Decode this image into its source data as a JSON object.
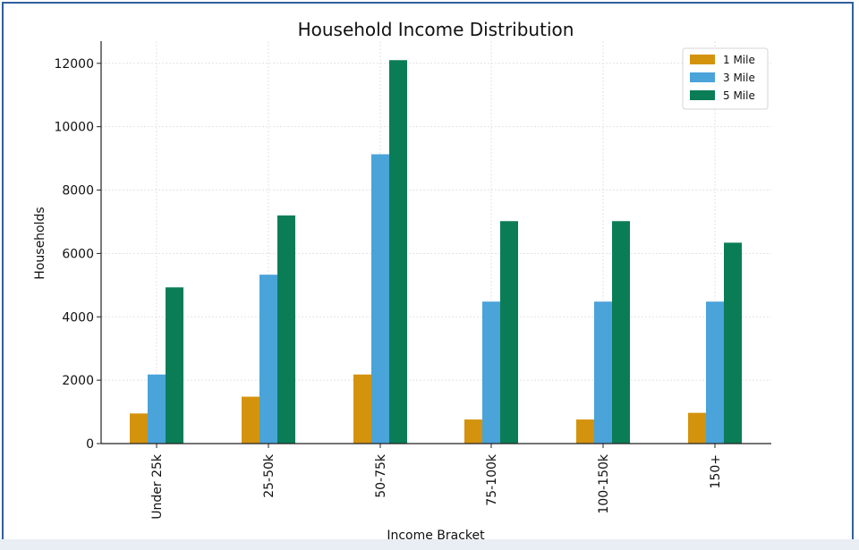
{
  "chart_data": {
    "type": "bar",
    "title": "Household Income Distribution",
    "xlabel": "Income Bracket",
    "ylabel": "Households",
    "categories": [
      "Under 25k",
      "25-50k",
      "50-75k",
      "75-100k",
      "100-150k",
      "150+"
    ],
    "series": [
      {
        "name": "1 Mile",
        "color": "#d4930d",
        "values": [
          950,
          1480,
          2180,
          760,
          760,
          970
        ]
      },
      {
        "name": "3 Mile",
        "color": "#4aa3d9",
        "values": [
          2180,
          5330,
          9130,
          4480,
          4480,
          4480
        ]
      },
      {
        "name": "5 Mile",
        "color": "#0a7d56",
        "values": [
          4930,
          7200,
          12100,
          7020,
          7020,
          6340
        ]
      }
    ],
    "ylim": [
      0,
      12700
    ],
    "yticks": [
      0,
      2000,
      4000,
      6000,
      8000,
      10000,
      12000
    ],
    "grid": true,
    "legend_position": "top-right"
  }
}
